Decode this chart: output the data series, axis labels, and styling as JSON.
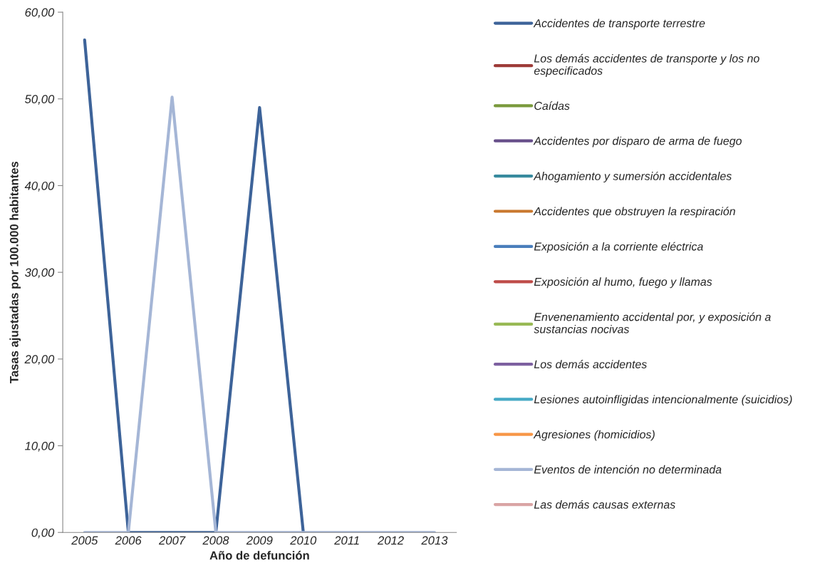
{
  "chart_data": {
    "type": "line",
    "xlabel": "Año de defunción",
    "ylabel": "Tasas ajustadas por 100.000 habitantes",
    "categories": [
      "2005",
      "2006",
      "2007",
      "2008",
      "2009",
      "2010",
      "2011",
      "2012",
      "2013"
    ],
    "ylim": [
      0,
      60
    ],
    "yticks": [
      {
        "value": 0,
        "label": "0,00"
      },
      {
        "value": 10,
        "label": "10,00"
      },
      {
        "value": 20,
        "label": "20,00"
      },
      {
        "value": 30,
        "label": "30,00"
      },
      {
        "value": 40,
        "label": "40,00"
      },
      {
        "value": 50,
        "label": "50,00"
      },
      {
        "value": 60,
        "label": "60,00"
      }
    ],
    "grid": false,
    "legend": "right",
    "marker": "none",
    "line_style": "solid",
    "series": [
      {
        "name": "Accidentes de transporte terrestre",
        "color": "#3d6399",
        "values": [
          56.8,
          0,
          0,
          0,
          49.0,
          0,
          null,
          null,
          null
        ]
      },
      {
        "name": "Los demás accidentes de transporte y los no especificados",
        "color": "#9d3b38",
        "values": [
          null,
          null,
          null,
          null,
          null,
          null,
          null,
          null,
          null
        ]
      },
      {
        "name": "Caídas",
        "color": "#7a9a3c",
        "values": [
          null,
          null,
          null,
          null,
          null,
          null,
          null,
          null,
          null
        ]
      },
      {
        "name": "Accidentes por disparo de arma de fuego",
        "color": "#674f8a",
        "values": [
          null,
          null,
          null,
          null,
          null,
          null,
          null,
          null,
          null
        ]
      },
      {
        "name": "Ahogamiento y sumersión accidentales",
        "color": "#378a9e",
        "values": [
          null,
          null,
          null,
          null,
          null,
          null,
          null,
          null,
          null
        ]
      },
      {
        "name": "Accidentes que obstruyen la respiración",
        "color": "#c9782e",
        "values": [
          null,
          null,
          null,
          null,
          null,
          null,
          null,
          null,
          null
        ]
      },
      {
        "name": "Exposición a la corriente eléctrica",
        "color": "#4a7ebb",
        "values": [
          null,
          null,
          null,
          null,
          null,
          null,
          null,
          null,
          null
        ]
      },
      {
        "name": "Exposición al humo, fuego y llamas",
        "color": "#be4b48",
        "values": [
          null,
          null,
          null,
          null,
          null,
          null,
          null,
          null,
          null
        ]
      },
      {
        "name": "Envenenamiento accidental por, y exposición a sustancias nocivas",
        "color": "#98b954",
        "values": [
          null,
          null,
          null,
          null,
          null,
          null,
          null,
          null,
          null
        ]
      },
      {
        "name": "Los demás accidentes",
        "color": "#7d60a0",
        "values": [
          null,
          null,
          null,
          null,
          null,
          null,
          null,
          null,
          null
        ]
      },
      {
        "name": "Lesiones autoinfligidas intencionalmente (suicidios)",
        "color": "#46aac5",
        "values": [
          null,
          null,
          null,
          null,
          null,
          null,
          null,
          null,
          null
        ]
      },
      {
        "name": "Agresiones (homicidios)",
        "color": "#f79646",
        "values": [
          null,
          null,
          null,
          null,
          null,
          null,
          null,
          null,
          null
        ]
      },
      {
        "name": "Eventos de intención no determinada",
        "color": "#a5b6d6",
        "values": [
          0,
          0,
          50.2,
          0,
          0,
          0,
          0,
          0,
          0
        ]
      },
      {
        "name": "Las demás causas externas",
        "color": "#d9a4a4",
        "values": [
          null,
          null,
          null,
          null,
          null,
          null,
          null,
          null,
          null
        ]
      }
    ]
  }
}
